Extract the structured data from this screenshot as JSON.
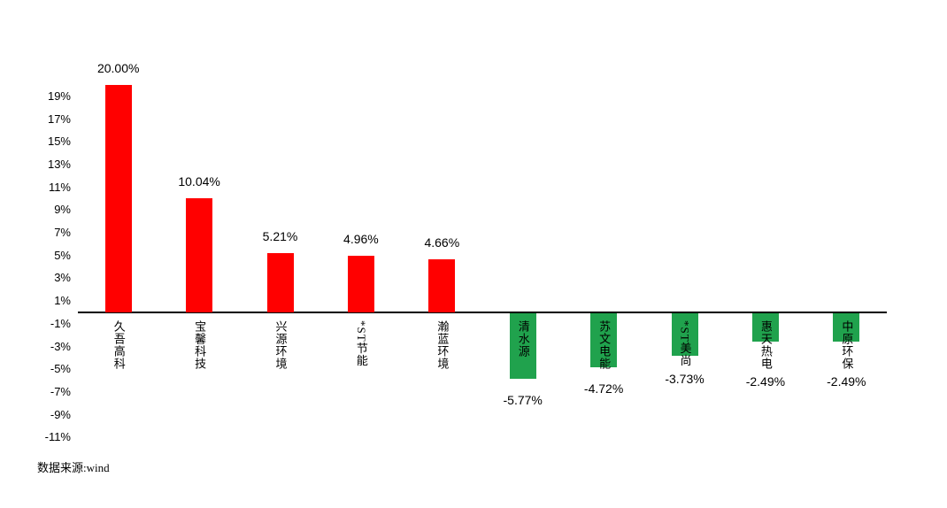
{
  "chart_data": {
    "type": "bar",
    "title": "",
    "categories": [
      "久吾高科",
      "宝馨科技",
      "兴源环境",
      "*ST节能",
      "瀚蓝环境",
      "清水源",
      "苏文电能",
      "*ST美尚",
      "惠天热电",
      "中原环保"
    ],
    "values": [
      20.0,
      10.04,
      5.21,
      4.96,
      4.66,
      -5.77,
      -4.72,
      -3.73,
      -2.49,
      -2.49
    ],
    "bar_labels": [
      "20.00%",
      "10.04%",
      "5.21%",
      "4.96%",
      "4.66%",
      "-5.77%",
      "-4.72%",
      "-3.73%",
      "-2.49%",
      "-2.49%"
    ],
    "ytick_values": [
      19,
      17,
      15,
      13,
      11,
      9,
      7,
      5,
      3,
      1,
      -1,
      -3,
      -5,
      -7,
      -9,
      -11
    ],
    "ytick_labels": [
      "19%",
      "17%",
      "15%",
      "13%",
      "11%",
      "9%",
      "7%",
      "5%",
      "3%",
      "1%",
      "-1%",
      "-3%",
      "-5%",
      "-7%",
      "-9%",
      "-11%"
    ],
    "ylim": [
      -11,
      20.5
    ],
    "xlabel": "",
    "ylabel": "",
    "grid": false,
    "legend": "none",
    "positive_color": "#FF0000",
    "negative_color": "#20A24D",
    "axis_color": "#000000",
    "source_note": "数据来源:wind"
  }
}
